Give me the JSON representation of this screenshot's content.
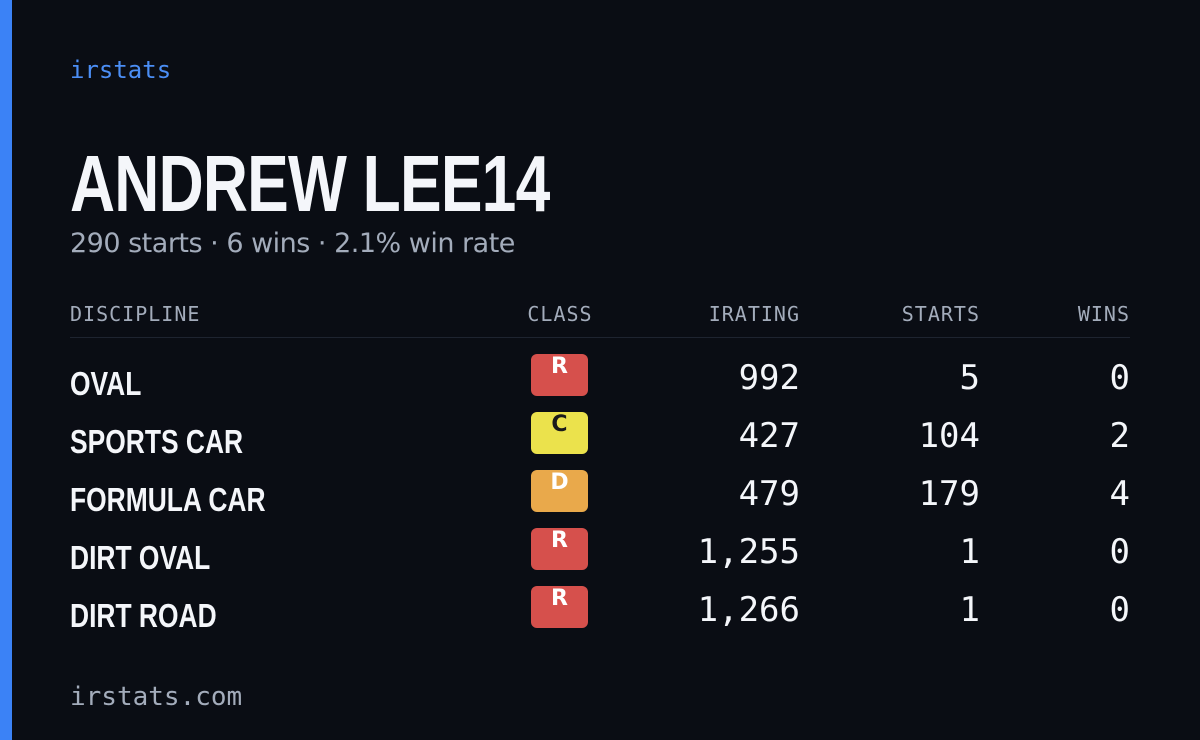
{
  "brand": "irstats",
  "header": {
    "name": "ANDREW LEE14",
    "summary": "290 starts · 6 wins · 2.1% win rate"
  },
  "table": {
    "columns": [
      "DISCIPLINE",
      "CLASS",
      "IRATING",
      "STARTS",
      "WINS"
    ],
    "rows": [
      [
        "OVAL",
        "R",
        "992",
        "5",
        "0"
      ],
      [
        "SPORTS CAR",
        "C",
        "427",
        "104",
        "2"
      ],
      [
        "FORMULA CAR",
        "D",
        "479",
        "179",
        "4"
      ],
      [
        "DIRT OVAL",
        "R",
        "1,255",
        "1",
        "0"
      ],
      [
        "DIRT ROAD",
        "R",
        "1,266",
        "1",
        "0"
      ]
    ]
  },
  "class_colors": {
    "R": "#d6504c",
    "C": "#ebe24c",
    "D": "#e9a94b"
  },
  "footer": "irstats.com"
}
